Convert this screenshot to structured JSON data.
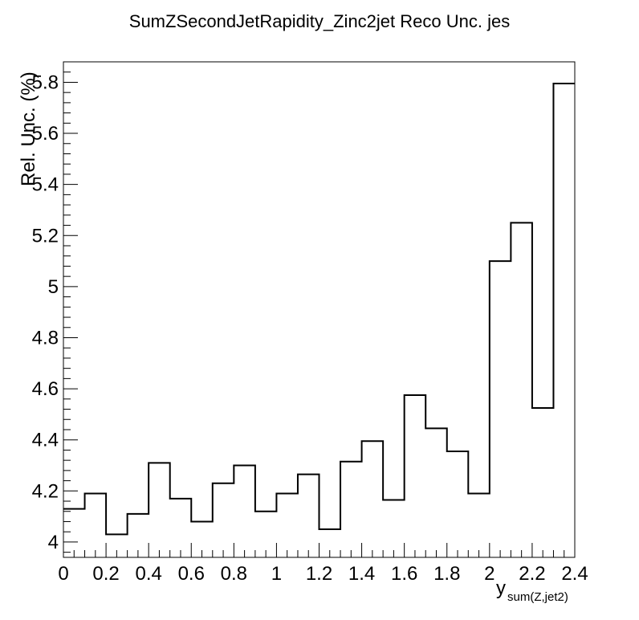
{
  "chart_data": {
    "type": "histogram",
    "title": "SumZSecondJetRapidity_Zinc2jet Reco Unc. jes",
    "ylabel": "Rel. Unc. (%)",
    "xlabel_main": "y",
    "xlabel_sub": "sum(Z,jet2)",
    "xlim": [
      0,
      2.4
    ],
    "ylim": [
      3.94,
      5.88
    ],
    "bin_edges": [
      0,
      0.1,
      0.2,
      0.3,
      0.4,
      0.5,
      0.6,
      0.7,
      0.8,
      0.9,
      1.0,
      1.1,
      1.2,
      1.3,
      1.4,
      1.5,
      1.6,
      1.7,
      1.8,
      1.9,
      2.0,
      2.1,
      2.2,
      2.3,
      2.4
    ],
    "values": [
      4.13,
      4.19,
      4.03,
      4.11,
      4.31,
      4.17,
      4.08,
      4.23,
      4.3,
      4.12,
      4.19,
      4.265,
      4.05,
      4.315,
      4.395,
      4.165,
      4.575,
      4.445,
      4.355,
      4.19,
      5.1,
      5.25,
      4.525,
      5.795
    ],
    "x_ticks": [
      {
        "v": 0,
        "label": "0"
      },
      {
        "v": 0.2,
        "label": "0.2"
      },
      {
        "v": 0.4,
        "label": "0.4"
      },
      {
        "v": 0.6,
        "label": "0.6"
      },
      {
        "v": 0.8,
        "label": "0.8"
      },
      {
        "v": 1.0,
        "label": "1"
      },
      {
        "v": 1.2,
        "label": "1.2"
      },
      {
        "v": 1.4,
        "label": "1.4"
      },
      {
        "v": 1.6,
        "label": "1.6"
      },
      {
        "v": 1.8,
        "label": "1.8"
      },
      {
        "v": 2.0,
        "label": "2"
      },
      {
        "v": 2.2,
        "label": "2.2"
      },
      {
        "v": 2.4,
        "label": "2.4"
      }
    ],
    "y_ticks": [
      {
        "v": 4.0,
        "label": "4"
      },
      {
        "v": 4.2,
        "label": "4.2"
      },
      {
        "v": 4.4,
        "label": "4.4"
      },
      {
        "v": 4.6,
        "label": "4.6"
      },
      {
        "v": 4.8,
        "label": "4.8"
      },
      {
        "v": 5.0,
        "label": "5"
      },
      {
        "v": 5.2,
        "label": "5.2"
      },
      {
        "v": 5.4,
        "label": "5.4"
      },
      {
        "v": 5.6,
        "label": "5.6"
      },
      {
        "v": 5.8,
        "label": "5.8"
      }
    ],
    "grid": false,
    "legend": "none",
    "line_color": "#000000"
  }
}
